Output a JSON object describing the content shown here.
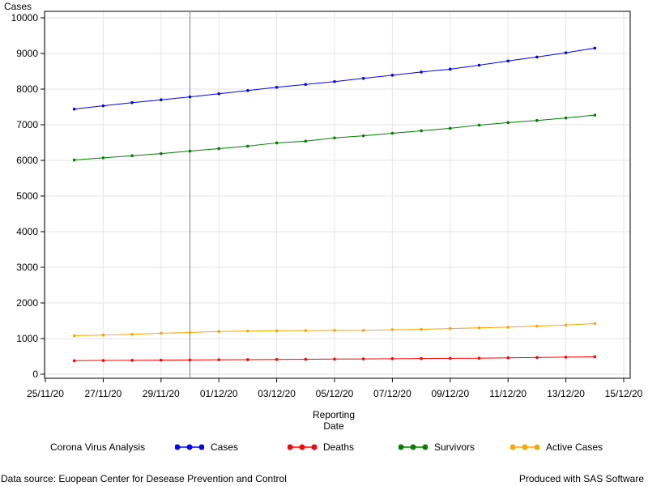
{
  "chart_data": {
    "type": "line",
    "ylabel": "Cases",
    "xlabel_line1": "Reporting",
    "xlabel_line2": "Date",
    "ylim": [
      0,
      10000
    ],
    "yticks": [
      0,
      1000,
      2000,
      3000,
      4000,
      5000,
      6000,
      7000,
      8000,
      9000,
      10000
    ],
    "xrange": [
      "2020-11-25",
      "2020-12-15"
    ],
    "xticks": [
      {
        "date": "2020-11-25",
        "label": "25/11/20"
      },
      {
        "date": "2020-11-27",
        "label": "27/11/20"
      },
      {
        "date": "2020-11-29",
        "label": "29/11/20"
      },
      {
        "date": "2020-12-01",
        "label": "01/12/20"
      },
      {
        "date": "2020-12-03",
        "label": "03/12/20"
      },
      {
        "date": "2020-12-05",
        "label": "05/12/20"
      },
      {
        "date": "2020-12-07",
        "label": "07/12/20"
      },
      {
        "date": "2020-12-09",
        "label": "09/12/20"
      },
      {
        "date": "2020-12-11",
        "label": "11/12/20"
      },
      {
        "date": "2020-12-13",
        "label": "13/12/20"
      },
      {
        "date": "2020-12-15",
        "label": "15/12/20"
      }
    ],
    "reference_line_date": "2020-11-30",
    "grid": true,
    "x": [
      "2020-11-26",
      "2020-11-27",
      "2020-11-28",
      "2020-11-29",
      "2020-11-30",
      "2020-12-01",
      "2020-12-02",
      "2020-12-03",
      "2020-12-04",
      "2020-12-05",
      "2020-12-06",
      "2020-12-07",
      "2020-12-08",
      "2020-12-09",
      "2020-12-10",
      "2020-12-11",
      "2020-12-12",
      "2020-12-13",
      "2020-12-14"
    ],
    "series": [
      {
        "name": "Cases",
        "color": "#0000ff",
        "values": [
          7440,
          7530,
          7620,
          7700,
          7780,
          7870,
          7960,
          8050,
          8130,
          8210,
          8300,
          8390,
          8480,
          8560,
          8670,
          8790,
          8900,
          9020,
          9150
        ]
      },
      {
        "name": "Deaths",
        "color": "#ff0000",
        "values": [
          380,
          385,
          390,
          395,
          400,
          405,
          410,
          415,
          420,
          425,
          430,
          435,
          440,
          445,
          450,
          460,
          470,
          480,
          490
        ]
      },
      {
        "name": "Survivors",
        "color": "#008000",
        "values": [
          6010,
          6070,
          6130,
          6190,
          6260,
          6330,
          6400,
          6490,
          6540,
          6630,
          6690,
          6760,
          6830,
          6900,
          6990,
          7060,
          7120,
          7190,
          7270
        ]
      },
      {
        "name": "Active Cases",
        "color": "#ffa500",
        "values": [
          1080,
          1100,
          1120,
          1150,
          1170,
          1200,
          1210,
          1220,
          1225,
          1230,
          1230,
          1250,
          1260,
          1280,
          1300,
          1320,
          1350,
          1380,
          1420
        ]
      }
    ],
    "legend_title": "Corona Virus Analysis",
    "legend_placement": "bottom"
  },
  "footer": {
    "left": "Data source: Euopean Center for Desease Prevention and Control",
    "right": "Produced with SAS Software"
  }
}
